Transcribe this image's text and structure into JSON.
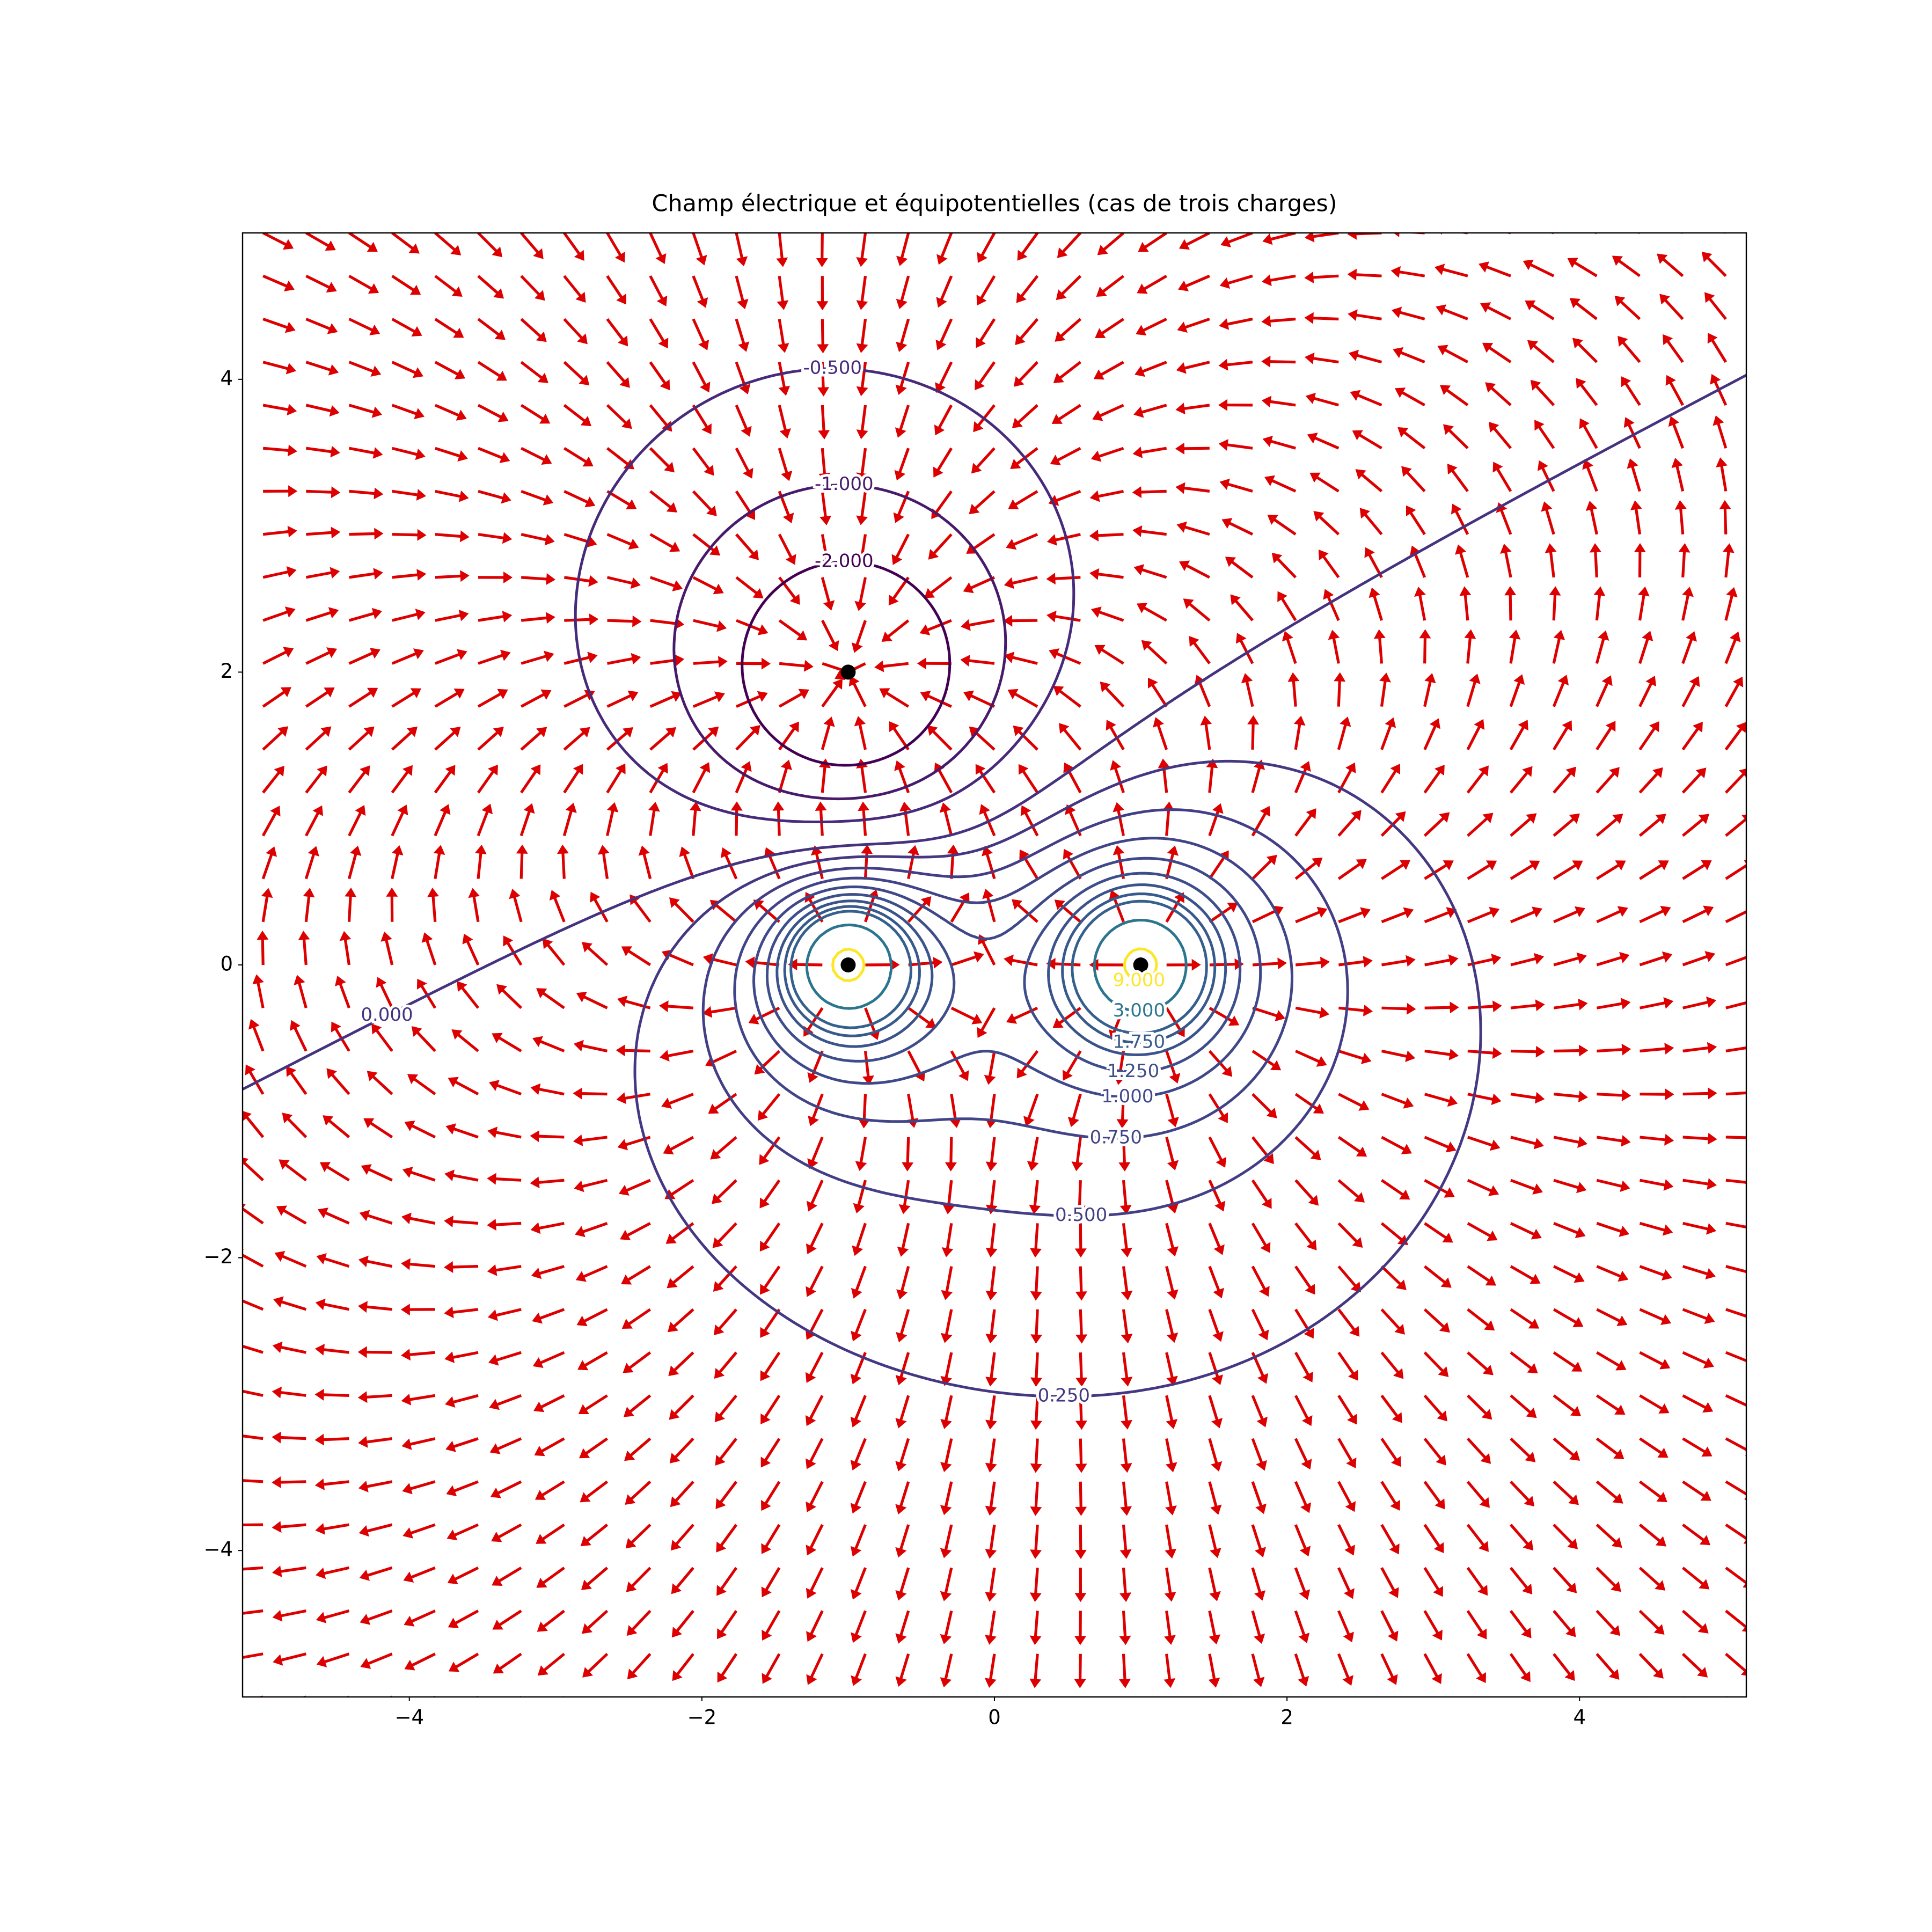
{
  "chart_data": {
    "type": "field",
    "title": "Champ électrique et équipotentielles (cas de trois charges)",
    "xlim": [
      -5.14,
      5.14
    ],
    "ylim": [
      -5.0,
      5.0
    ],
    "xticks": [
      {
        "value": -4,
        "label": "−4"
      },
      {
        "value": -2,
        "label": "−2"
      },
      0,
      2,
      4
    ],
    "yticks": [
      {
        "value": -4,
        "label": "−4"
      },
      {
        "value": -2,
        "label": "−2"
      },
      0,
      2,
      4
    ],
    "charges": {
      "x": [
        -1,
        -1,
        1
      ],
      "y": [
        2,
        0,
        0
      ],
      "q": [
        -2,
        1,
        1
      ],
      "color": "#000000"
    },
    "quiver": {
      "start": -5,
      "stop": 5,
      "count": 35,
      "color": "#dd0000"
    },
    "levels": [
      -2,
      -1,
      -0.5,
      0,
      0.25,
      0.5,
      0.75,
      1,
      1.25,
      1.5,
      1.75,
      2,
      3,
      9
    ],
    "value_labels": [
      "-2.000",
      "-1.000",
      "-0.500",
      "0.000",
      "0.250",
      "0.500",
      "0.750",
      "1.000",
      "1.250",
      null,
      "1.750",
      null,
      "3.000",
      "9.000"
    ],
    "colors": [
      "#440154",
      "#481a6c",
      "#472a7a",
      "#46337f",
      "#453781",
      "#433e85",
      "#414487",
      "#3f4889",
      "#3d4e8a",
      "#3a538b",
      "#38598c",
      "#355f8d",
      "#2b758e",
      "#fde725"
    ]
  }
}
